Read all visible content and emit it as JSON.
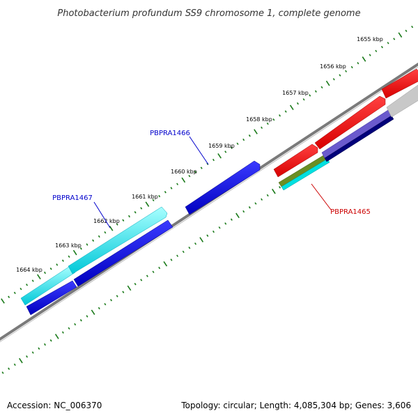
{
  "title": "Photobacterium profundum SS9 chromosome 1, complete genome",
  "ticks": [
    {
      "label": "1655 kbp"
    },
    {
      "label": "1656 kbp"
    },
    {
      "label": "1657 kbp"
    },
    {
      "label": "1658 kbp"
    },
    {
      "label": "1659 kbp"
    },
    {
      "label": "1660 kbp"
    },
    {
      "label": "1661 kbp"
    },
    {
      "label": "1662 kbp"
    },
    {
      "label": "1663 kbp"
    },
    {
      "label": "1664 kbp"
    }
  ],
  "gene_labels": [
    {
      "text": "PBPRA1466",
      "color": "#0000cc"
    },
    {
      "text": "PBPRA1467",
      "color": "#0000cc"
    },
    {
      "text": "PBPRA1465",
      "color": "#cc0000"
    }
  ],
  "colors": {
    "backbone": "#777777",
    "tick": "#1a7a1a",
    "cyan": "#00e5e5",
    "blue": "#0000ee",
    "red": "#ff0000",
    "purple": "#6a5acd",
    "navy": "#00007a",
    "olive": "#6b8e23",
    "lightgray": "#c8c8c8"
  },
  "footer": {
    "accession": "Accession: NC_006370",
    "summary": "Topology: circular; Length: 4,085,304 bp; Genes: 3,606"
  }
}
